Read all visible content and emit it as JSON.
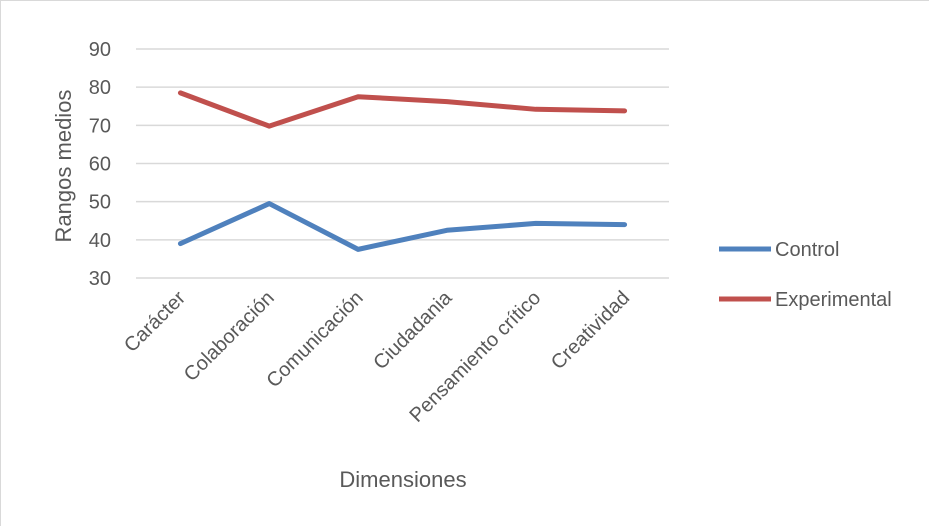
{
  "chart_data": {
    "type": "line",
    "title": "",
    "xlabel": "Dimensiones",
    "ylabel": "Rangos medios",
    "categories": [
      "Carácter",
      "Colaboración",
      "Comunicación",
      "Ciudadania",
      "Pensamiento crítico",
      "Creatividad"
    ],
    "ylim": [
      30,
      90
    ],
    "yticks": [
      30,
      40,
      50,
      60,
      70,
      80,
      90
    ],
    "grid": true,
    "legend_position": "right",
    "series": [
      {
        "name": "Control",
        "color": "#4f81bd",
        "values": [
          39,
          49.5,
          37.5,
          42.5,
          44.3,
          44
        ]
      },
      {
        "name": "Experimental",
        "color": "#c0504d",
        "values": [
          78.5,
          69.8,
          77.5,
          76.2,
          74.2,
          73.8
        ]
      }
    ]
  }
}
